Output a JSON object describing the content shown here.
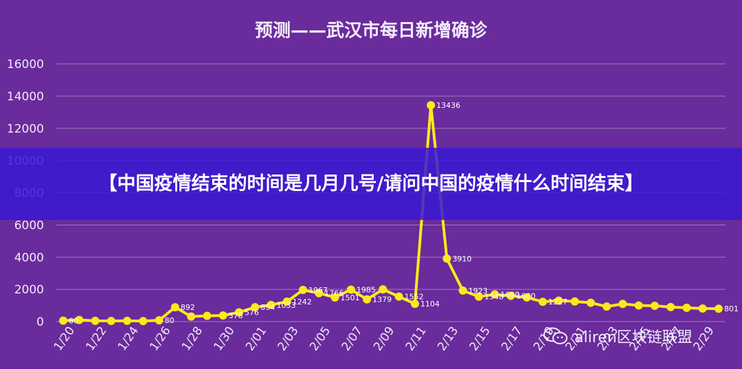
{
  "chart_data": {
    "type": "line",
    "title": "预测——武汉市每日新增确诊",
    "ylim": [
      0,
      16000
    ],
    "yticks": [
      "0",
      "2000",
      "4000",
      "6000",
      "8000",
      "10000",
      "12000",
      "14000",
      "16000"
    ],
    "xticks": [
      "1/20",
      "1/22",
      "1/24",
      "1/26",
      "1/28",
      "1/30",
      "2/01",
      "2/03",
      "2/05",
      "2/07",
      "2/09",
      "2/11",
      "2/13",
      "2/15",
      "2/17",
      "2/19",
      "2/21",
      "2/23",
      "2/25",
      "2/27",
      "2/29"
    ],
    "grid": true,
    "series": [
      {
        "color": "#ffe81a",
        "x": [
          "1/20",
          "1/21",
          "1/22",
          "1/23",
          "1/24",
          "1/25",
          "1/26",
          "1/27",
          "1/28",
          "1/29",
          "1/30",
          "1/31",
          "2/01",
          "2/02",
          "2/03",
          "2/04",
          "2/05",
          "2/06",
          "2/07",
          "2/08",
          "2/09",
          "2/10",
          "2/11",
          "2/12",
          "2/13",
          "2/14",
          "2/15",
          "2/16",
          "2/17",
          "2/18",
          "2/19",
          "2/20",
          "2/21",
          "2/22",
          "2/23",
          "2/24",
          "2/25",
          "2/26",
          "2/27",
          "2/28",
          "2/29",
          "3/01"
        ],
        "values": [
          60,
          100,
          50,
          40,
          50,
          30,
          80,
          892,
          315,
          356,
          378,
          576,
          894,
          1033,
          1242,
          1967,
          1766,
          1501,
          1985,
          1379,
          2000,
          1552,
          1104,
          13436,
          3910,
          1923,
          1548,
          1690,
          1600,
          1500,
          1227,
          1300,
          1247,
          1170,
          931,
          1100,
          1000,
          980,
          900,
          860,
          810,
          801
        ],
        "labels": [
          "60",
          "",
          "",
          "",
          "",
          "",
          "80",
          "892",
          "",
          "",
          "378",
          "576",
          "894",
          "1033",
          "1242",
          "1967",
          "1766",
          "1501",
          "1985",
          "1379",
          "",
          "1552",
          "1104",
          "13436",
          "3910",
          "1923",
          "1548",
          "1690",
          "1600",
          "",
          "1227",
          "",
          "",
          "",
          "",
          "",
          "",
          "",
          "",
          "",
          "",
          "801"
        ]
      }
    ]
  },
  "banner": {
    "text": "【中国疫情结束的时间是几月几号/请问中国的疫情什么时间结束】"
  },
  "watermark": {
    "text": "aliren区块链联盟",
    "icon": "wechat-icon"
  },
  "colors": {
    "background": "#6a2b9c",
    "line": "#ffe81a",
    "banner": "#3a18d2"
  }
}
